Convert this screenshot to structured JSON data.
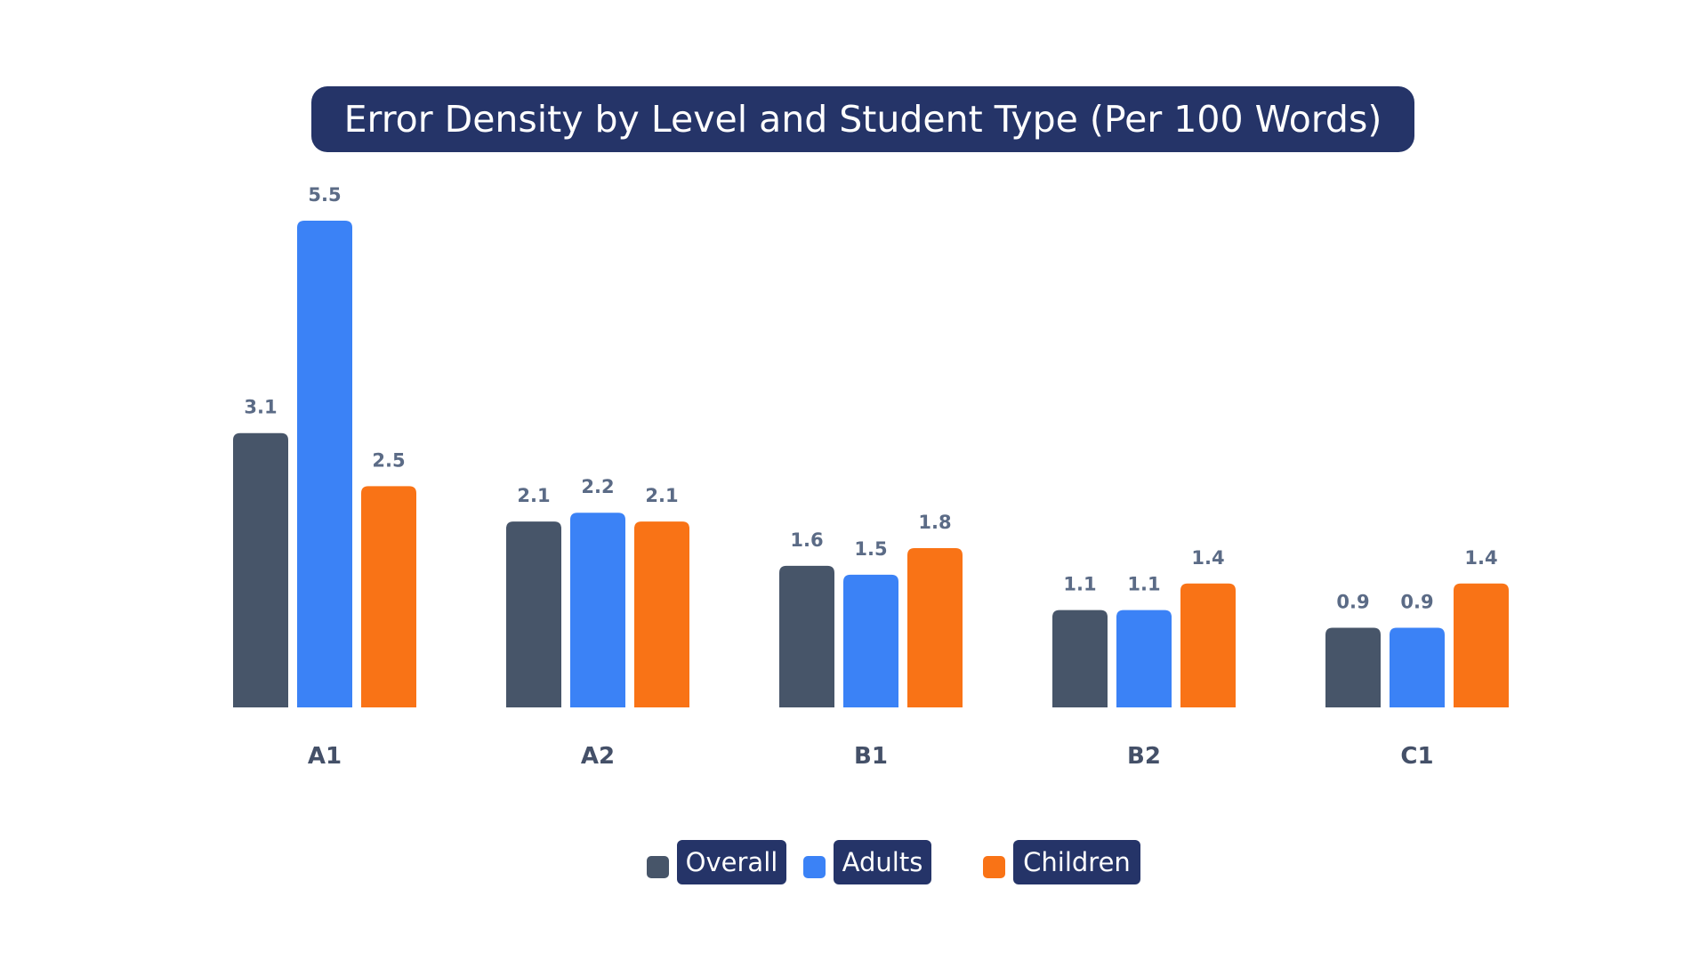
{
  "chart_data": {
    "type": "bar",
    "title": "Error Density by Level and Student Type (Per 100 Words)",
    "xlabel": "",
    "ylabel": "",
    "categories": [
      "A1",
      "A2",
      "B1",
      "B2",
      "C1"
    ],
    "series": [
      {
        "name": "Overall",
        "color": "#475569",
        "values": [
          3.1,
          2.1,
          1.6,
          1.1,
          0.9
        ],
        "labels": [
          "3.1",
          "2.1",
          "1.6",
          "1.1",
          "0.9"
        ]
      },
      {
        "name": "Adults",
        "color": "#3b82f6",
        "values": [
          5.5,
          2.2,
          1.5,
          1.1,
          0.9
        ],
        "labels": [
          "5.5",
          "2.2",
          "1.5",
          "1.1",
          "0.9"
        ]
      },
      {
        "name": "Children",
        "color": "#f97316",
        "values": [
          2.5,
          2.1,
          1.8,
          1.4,
          1.4
        ],
        "labels": [
          "2.5",
          "2.1",
          "1.8",
          "1.4",
          "1.4"
        ]
      }
    ],
    "ylim": [
      0,
      5.5
    ],
    "grid": false,
    "legend_position": "bottom"
  }
}
